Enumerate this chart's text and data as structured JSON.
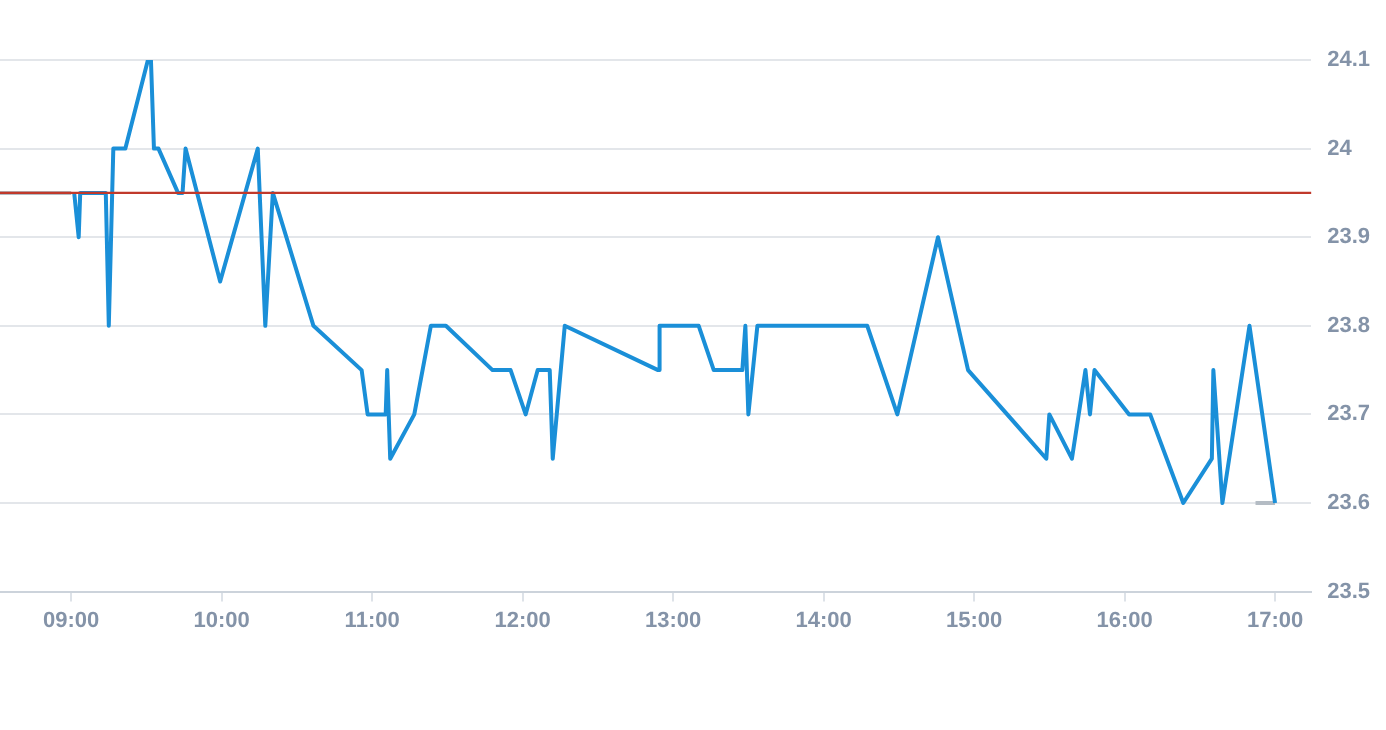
{
  "chart_data": {
    "type": "line",
    "series": [
      {
        "color": "#1a8fd8",
        "x": [
          9.02,
          9.05,
          9.06,
          9.23,
          9.25,
          9.28,
          9.36,
          9.51,
          9.53,
          9.55,
          9.58,
          9.71,
          9.74,
          9.76,
          9.99,
          10.24,
          10.29,
          10.34,
          10.61,
          10.93,
          10.97,
          11.09,
          11.1,
          11.12,
          11.28,
          11.39,
          11.49,
          11.8,
          11.92,
          12.02,
          12.1,
          12.18,
          12.2,
          12.28,
          12.9,
          12.91,
          13.17,
          13.27,
          13.46,
          13.48,
          13.5,
          13.56,
          14.29,
          14.49,
          14.76,
          14.96,
          15.48,
          15.5,
          15.65,
          15.74,
          15.77,
          15.8,
          16.03,
          16.17,
          16.39,
          16.58,
          16.59,
          16.65,
          16.83,
          17.0
        ],
        "values": [
          23.95,
          23.9,
          23.95,
          23.95,
          23.8,
          24.0,
          24.0,
          24.1,
          24.1,
          24.0,
          24.0,
          23.95,
          23.95,
          24.0,
          23.85,
          24.0,
          23.8,
          23.95,
          23.8,
          23.75,
          23.7,
          23.7,
          23.75,
          23.65,
          23.7,
          23.8,
          23.8,
          23.75,
          23.75,
          23.7,
          23.75,
          23.75,
          23.65,
          23.8,
          23.75,
          23.8,
          23.8,
          23.75,
          23.75,
          23.8,
          23.7,
          23.8,
          23.8,
          23.7,
          23.9,
          23.75,
          23.65,
          23.7,
          23.65,
          23.75,
          23.7,
          23.75,
          23.7,
          23.7,
          23.6,
          23.65,
          23.75,
          23.6,
          23.8,
          23.6
        ]
      },
      {
        "color": "#b4bcc4",
        "x": [
          8.527,
          9.0
        ],
        "values": [
          23.95,
          23.95
        ]
      },
      {
        "color": "#b4bcc4",
        "x": [
          16.87,
          17.0
        ],
        "values": [
          23.6,
          23.6
        ]
      }
    ],
    "xlim": [
      8.527,
      17.24
    ],
    "xticks": [
      {
        "value": 9,
        "label": "09:00"
      },
      {
        "value": 10,
        "label": "10:00"
      },
      {
        "value": 11,
        "label": "11:00"
      },
      {
        "value": 12,
        "label": "12:00"
      },
      {
        "value": 13,
        "label": "13:00"
      },
      {
        "value": 14,
        "label": "14:00"
      },
      {
        "value": 15,
        "label": "15:00"
      },
      {
        "value": 16,
        "label": "16:00"
      },
      {
        "value": 17,
        "label": "17:00"
      }
    ],
    "ylim": [
      23.5,
      24.1
    ],
    "yticks": [
      23.5,
      23.6,
      23.7,
      23.8,
      23.9,
      24,
      24.1
    ],
    "ref_lines": [
      {
        "axis": "y",
        "value": 23.95,
        "color": "#c0392b"
      }
    ],
    "grid": "y",
    "legend": false,
    "marker": "none",
    "line_style": "solid"
  }
}
